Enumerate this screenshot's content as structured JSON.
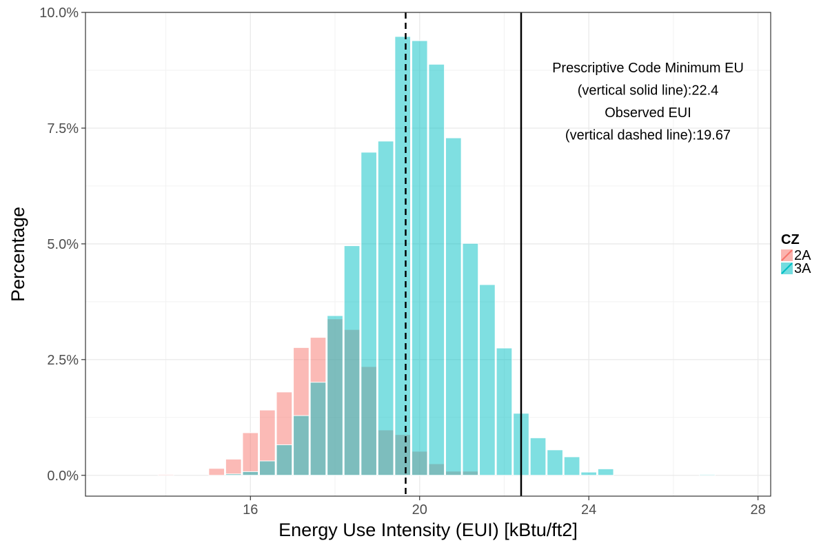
{
  "chart_data": {
    "type": "bar",
    "xlabel": "Energy Use Intensity (EUI) [kBtu/ft2]",
    "ylabel": "Percentage",
    "xlim": [
      12.1,
      28.3
    ],
    "ylim": [
      -0.0045,
      0.1
    ],
    "x_ticks": [
      16,
      20,
      24,
      28
    ],
    "y_ticks": [
      0,
      0.025,
      0.05,
      0.075,
      0.1
    ],
    "y_tick_labels": [
      "0.0%",
      "2.5%",
      "5.0%",
      "7.5%",
      "10.0%"
    ],
    "grid": true,
    "bar_width": 0.37,
    "x": [
      14.0,
      14.4,
      14.8,
      15.2,
      15.6,
      16.0,
      16.4,
      16.8,
      17.2,
      17.6,
      18.0,
      18.4,
      18.8,
      19.2,
      19.6,
      20.0,
      20.4,
      20.8,
      21.2,
      21.6,
      22.0,
      22.4,
      22.8,
      23.2,
      23.6,
      24.0,
      24.4,
      24.8,
      25.2,
      25.6,
      26.0,
      26.4,
      26.8,
      27.2
    ],
    "series": [
      {
        "name": "2A",
        "color": "#F8766D",
        "values": [
          0.0002,
          0,
          0,
          0.0015,
          0.0035,
          0.0092,
          0.0141,
          0.018,
          0.0276,
          0.0298,
          0.0338,
          0.0315,
          0.0235,
          0.0098,
          0.0088,
          0.0052,
          0.0025,
          0.0009,
          0.0009,
          0,
          0,
          0,
          0,
          0,
          0,
          0,
          0,
          0,
          0,
          0,
          0,
          0,
          0,
          0
        ]
      },
      {
        "name": "3A",
        "color": "#00BFC4",
        "values": [
          0,
          0,
          0,
          0,
          0.0003,
          0.0008,
          0.0031,
          0.0066,
          0.0129,
          0.0201,
          0.0345,
          0.0496,
          0.0698,
          0.0722,
          0.0948,
          0.0939,
          0.0888,
          0.0729,
          0.0501,
          0.0412,
          0.0275,
          0.0134,
          0.0081,
          0.0055,
          0.004,
          0.0007,
          0.0014,
          0,
          0,
          0,
          0,
          0,
          0.0002,
          0
        ]
      }
    ],
    "reference_lines": [
      {
        "x": 22.4,
        "style": "solid"
      },
      {
        "x": 19.67,
        "style": "dashed"
      }
    ],
    "annotation": [
      "Prescriptive Code Minimum EU",
      "(vertical solid line):22.4",
      "Observed EUI",
      "(vertical dashed line):19.67"
    ],
    "legend": {
      "title": "CZ",
      "position": "right",
      "entries": [
        "2A",
        "3A"
      ]
    }
  }
}
